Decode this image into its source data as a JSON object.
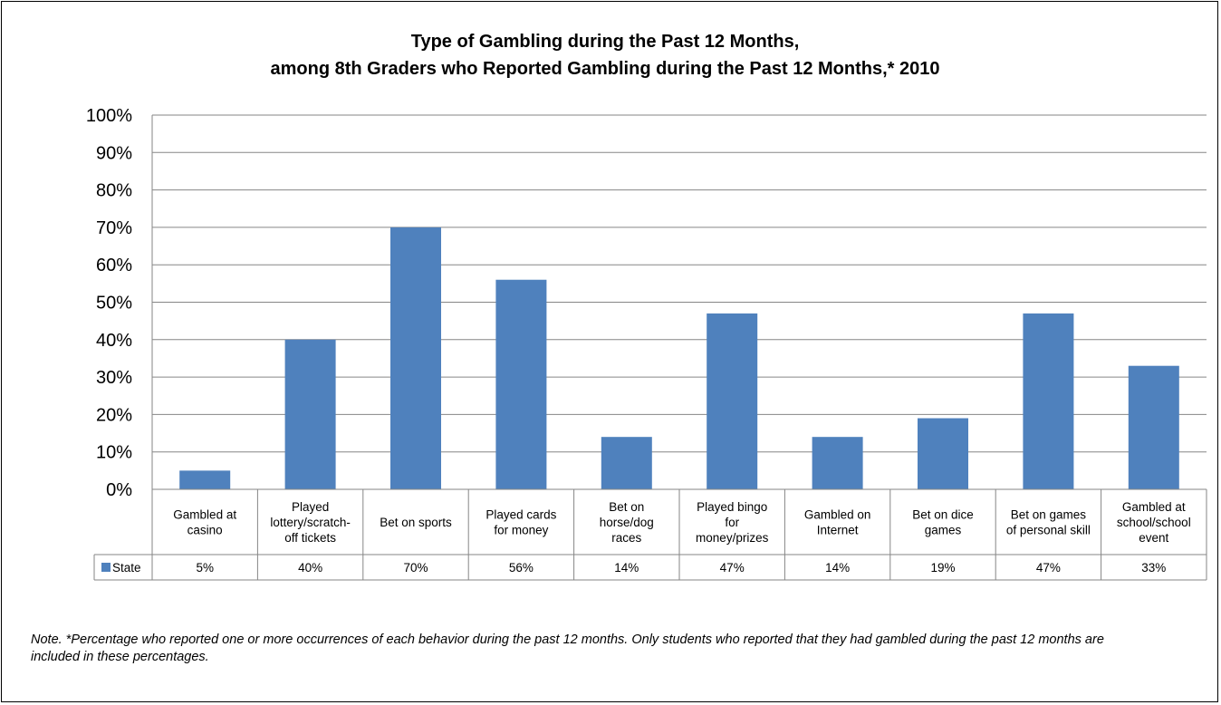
{
  "chart_data": {
    "type": "bar",
    "title": [
      "Type of Gambling during the Past 12 Months,",
      "among 8th Graders who Reported Gambling during the Past 12 Months,* 2010"
    ],
    "categories": [
      [
        "Gambled at",
        "casino"
      ],
      [
        "Played",
        "lottery/scratch-",
        "off tickets"
      ],
      [
        "Bet on sports"
      ],
      [
        "Played cards",
        "for money"
      ],
      [
        "Bet on",
        "horse/dog",
        "races"
      ],
      [
        "Played bingo",
        "for",
        "money/prizes"
      ],
      [
        "Gambled on",
        "Internet"
      ],
      [
        "Bet on dice",
        "games"
      ],
      [
        "Bet on games",
        "of personal skill"
      ],
      [
        "Gambled at",
        "school/school",
        "event"
      ]
    ],
    "series": [
      {
        "name": "State",
        "values": [
          5,
          40,
          70,
          56,
          14,
          47,
          14,
          19,
          47,
          33
        ],
        "labels": [
          "5%",
          "40%",
          "70%",
          "56%",
          "14%",
          "47%",
          "14%",
          "19%",
          "47%",
          "33%"
        ]
      }
    ],
    "yticks": [
      "0%",
      "10%",
      "20%",
      "30%",
      "40%",
      "50%",
      "60%",
      "70%",
      "80%",
      "90%",
      "100%"
    ],
    "ylim": [
      0,
      100
    ],
    "grid": true,
    "legend": "data-table",
    "bar_color": "#4f81bd"
  },
  "note": "Note. *Percentage who reported one or more occurrences of each behavior during the past 12 months. Only students who reported that they had gambled during the past 12 months are included in these percentages."
}
